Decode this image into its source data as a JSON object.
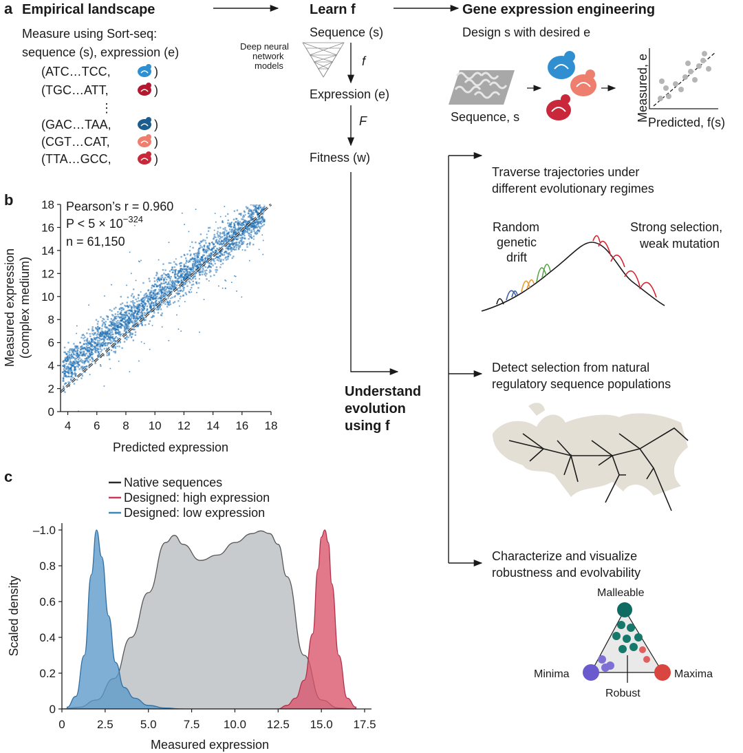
{
  "panel_a": {
    "letter": "a",
    "empirical": {
      "title": "Empirical landscape",
      "line1": "Measure using Sort-seq:",
      "line2": "sequence (s), expression (e)",
      "pairs": [
        "(ATC…TCC,",
        "(TGC…ATT,",
        "(GAC…TAA,",
        "(CGT…CAT,",
        "(TTA…GCC,"
      ],
      "close": ")",
      "dots": "⋮"
    },
    "learn": {
      "title": "Learn f",
      "sequence": "Sequence (s)",
      "expression": "Expression (e)",
      "fitness": "Fitness (w)",
      "f": "f",
      "F": "F",
      "dnn": [
        "Deep neural",
        "network",
        "models"
      ]
    },
    "engineering": {
      "title": "Gene expression engineering",
      "subtitle": "Design s with desired e",
      "seq_label": "Sequence, s",
      "measured": "Measured, e",
      "predicted": "Predicted, f(s)"
    },
    "understand": [
      "Understand",
      "evolution",
      "using f"
    ],
    "traverse": {
      "lines": [
        "Traverse trajectories under",
        "different evolutionary regimes"
      ],
      "random": [
        "Random",
        "genetic",
        "drift"
      ],
      "strong": [
        "Strong selection,",
        "weak mutation"
      ]
    },
    "detect": {
      "lines": [
        "Detect selection from natural",
        "regulatory sequence populations"
      ]
    },
    "characterize": {
      "lines": [
        "Characterize and visualize",
        "robustness and evolvability"
      ],
      "malleable": "Malleable",
      "minima": "Minima",
      "maxima": "Maxima",
      "robust": "Robust"
    }
  },
  "colors": {
    "scatter_blue": "#1f6fb2",
    "native_gray": "#b9bcbf",
    "high_red": "#d9536a",
    "low_blue": "#5b98c9",
    "teal": "#0f6b62",
    "purple": "#6a5acd",
    "red_dot": "#d9453f"
  },
  "chart_data": [
    {
      "type": "scatter",
      "panel": "b",
      "title": "",
      "xlabel": "Predicted expression",
      "ylabel": "Measured expression (complex medium)",
      "xlim": [
        3.5,
        18
      ],
      "ylim": [
        0,
        18
      ],
      "xticks": [
        "4",
        "6",
        "8",
        "10",
        "12",
        "14",
        "16",
        "18"
      ],
      "yticks": [
        "0",
        "2",
        "4",
        "6",
        "8",
        "10",
        "12",
        "14",
        "16",
        "18"
      ],
      "stats": {
        "pearson": "Pearson’s r = 0.960",
        "p_value": "P < 5 × 10",
        "p_exp": "−324",
        "n": "n = 61,150"
      },
      "fit_line": {
        "x": [
          3.5,
          18
        ],
        "y": [
          1.7,
          18
        ]
      },
      "point_cloud": {
        "x_range": [
          3.6,
          17.5
        ],
        "slope": 1.0,
        "intercept": 0
      }
    },
    {
      "type": "area",
      "panel": "c",
      "xlabel": "Measured expression",
      "ylabel": "Scaled density",
      "xlim": [
        0,
        17.5
      ],
      "ylim": [
        0,
        1.0
      ],
      "xticks": [
        "0",
        "2.5",
        "5.0",
        "7.5",
        "10.0",
        "12.5",
        "15.0",
        "17.5"
      ],
      "yticks": [
        "0",
        "0.2",
        "0.4",
        "0.6",
        "0.8",
        "–1.0"
      ],
      "legend": [
        "Native sequences",
        "Designed: high expression",
        "Designed: low expression"
      ],
      "series": [
        {
          "name": "Native sequences",
          "x": [
            0,
            1,
            2,
            3,
            4,
            5,
            6,
            6.5,
            7,
            8,
            9,
            10,
            11,
            11.5,
            12,
            12.5,
            13,
            14,
            15,
            16,
            17
          ],
          "y": [
            0,
            0.01,
            0.05,
            0.17,
            0.4,
            0.65,
            0.93,
            0.97,
            0.92,
            0.83,
            0.86,
            0.93,
            0.98,
            0.995,
            0.98,
            0.92,
            0.74,
            0.3,
            0.05,
            0.005,
            0
          ]
        },
        {
          "name": "Designed: high expression",
          "x": [
            12.5,
            13,
            13.5,
            14,
            14.5,
            14.8,
            15,
            15.2,
            15.4,
            15.6,
            16,
            16.5,
            17
          ],
          "y": [
            0,
            0.02,
            0.06,
            0.16,
            0.42,
            0.78,
            0.96,
            1.0,
            0.93,
            0.7,
            0.3,
            0.06,
            0.01
          ]
        },
        {
          "name": "Designed: low expression",
          "x": [
            0.3,
            0.8,
            1.3,
            1.7,
            2.0,
            2.3,
            2.7,
            3.1,
            3.6,
            4.2,
            5.0,
            6.0,
            7.0
          ],
          "y": [
            0.01,
            0.07,
            0.3,
            0.75,
            1.0,
            0.85,
            0.52,
            0.26,
            0.12,
            0.06,
            0.02,
            0.005,
            0
          ]
        }
      ]
    }
  ]
}
